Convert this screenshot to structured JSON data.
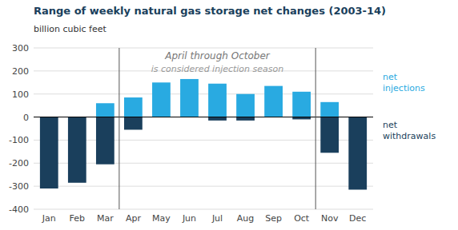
{
  "chart_data": {
    "type": "bar",
    "title": "Range of weekly natural gas storage net changes (2003-14)",
    "y_label": "billion cubic feet",
    "categories": [
      "Jan",
      "Feb",
      "Mar",
      "Apr",
      "May",
      "Jun",
      "Jul",
      "Aug",
      "Sep",
      "Oct",
      "Nov",
      "Dec"
    ],
    "series": [
      {
        "name": "net\ninjections",
        "color": "#29aae1",
        "values": [
          0,
          0,
          60,
          85,
          150,
          165,
          145,
          100,
          135,
          110,
          65,
          0
        ]
      },
      {
        "name": "net\nwithdrawals",
        "color": "#1a3f5c",
        "values": [
          -310,
          -285,
          -205,
          -55,
          0,
          0,
          -15,
          -15,
          0,
          -10,
          -155,
          -315
        ]
      }
    ],
    "annotation": {
      "lines": [
        "April through October",
        "is considered injection season"
      ],
      "span": [
        "Apr",
        "Oct"
      ]
    },
    "ylim": [
      -400,
      300
    ],
    "yticks": [
      -400,
      -300,
      -200,
      -100,
      0,
      100,
      200,
      300
    ],
    "grid": true,
    "legend": "right"
  }
}
